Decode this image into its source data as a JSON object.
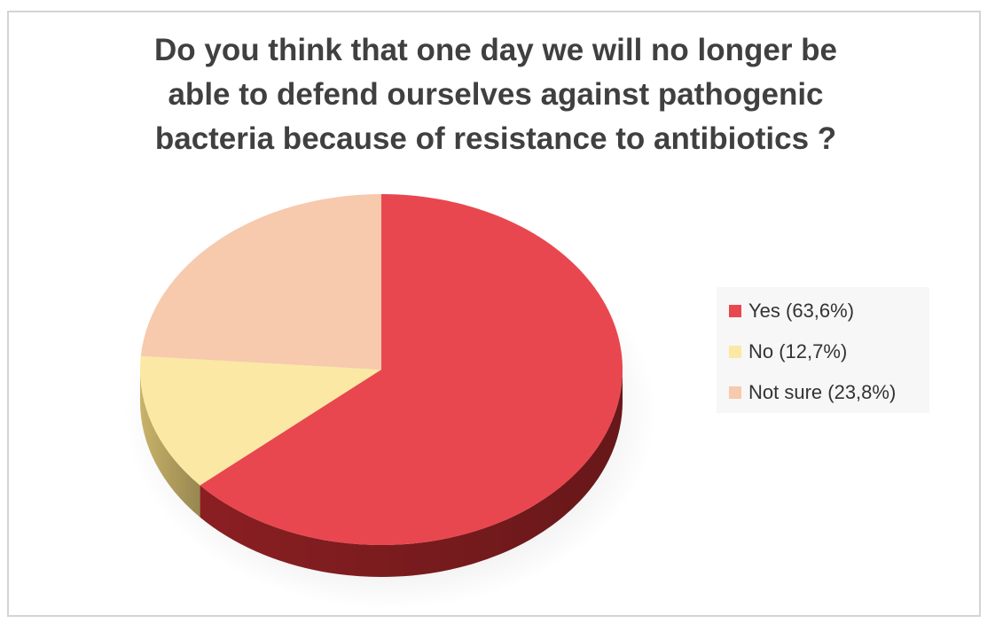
{
  "chart_data": {
    "type": "pie",
    "title_lines": [
      "Do you think that one day we will no longer be",
      "able to defend ourselves against pathogenic",
      "bacteria because of resistance to antibiotics ?"
    ],
    "slices": [
      {
        "label": "Yes (63,6%)",
        "value": 63.6,
        "color": "#e9474f",
        "side_color": "#8a1f22"
      },
      {
        "label": "No (12,7%)",
        "value": 12.7,
        "color": "#fbe8a4",
        "side_color": "#c9b36a"
      },
      {
        "label": "Not sure (23,8%)",
        "value": 23.8,
        "color": "#f7c9ad",
        "side_color": "#c9977d"
      }
    ],
    "start_angle_deg": 0,
    "direction": "clockwise",
    "style": "3d",
    "legend_position": "right"
  }
}
